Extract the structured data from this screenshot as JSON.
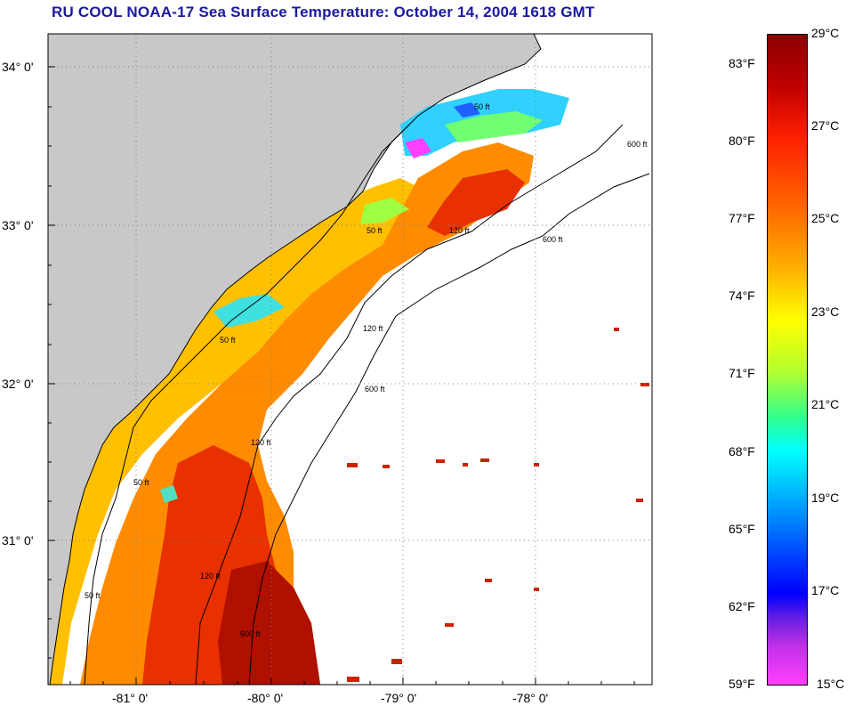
{
  "title": "RU COOL  NOAA-17  Sea Surface Temperature:  October 14, 2004 1618 GMT",
  "map": {
    "lat_labels": [
      "34° 0'",
      "33° 0'",
      "32° 0'",
      "31° 0'"
    ],
    "lon_labels": [
      "-81° 0'",
      "-80° 0'",
      "-79° 0'",
      "-78° 0'"
    ],
    "contour_labels": [
      "50 ft",
      "120 ft",
      "600 ft",
      "50 ft",
      "120 ft",
      "600 ft",
      "50 ft",
      "120 ft",
      "600 ft",
      "50 ft",
      "120 ft",
      "600 ft",
      "50 ft"
    ],
    "land_color": "#c8c8c8",
    "ocean_blank_color": "#ffffff"
  },
  "colorbar": {
    "fahrenheit": [
      "83°F",
      "80°F",
      "77°F",
      "74°F",
      "71°F",
      "68°F",
      "65°F",
      "62°F",
      "59°F"
    ],
    "celsius": [
      "29°C",
      "27°C",
      "25°C",
      "23°C",
      "21°C",
      "19°C",
      "17°C",
      "15°C"
    ]
  }
}
